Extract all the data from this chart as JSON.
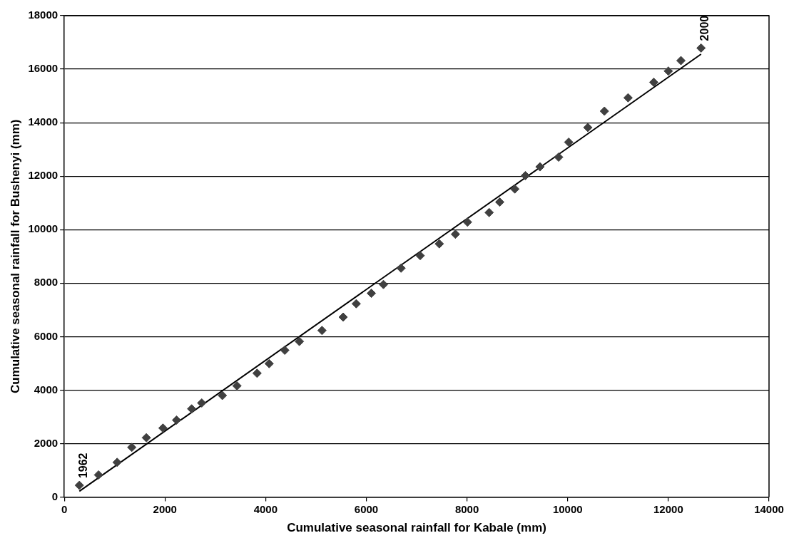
{
  "chart_data": {
    "type": "scatter",
    "xlabel": "Cumulative seasonal rainfall for Kabale (mm)",
    "ylabel": "Cumulative seasonal rainfall for Bushenyi (mm)",
    "xlim": [
      0,
      14000
    ],
    "xticks": [
      0,
      2000,
      4000,
      6000,
      8000,
      10000,
      12000,
      14000
    ],
    "ylim": [
      0,
      18000
    ],
    "yticks": [
      0,
      2000,
      4000,
      6000,
      8000,
      10000,
      12000,
      14000,
      16000,
      18000
    ],
    "grid": "y",
    "legend": false,
    "marker": "diamond",
    "annotations": [
      {
        "text": "1962",
        "x": 300,
        "y": 440
      },
      {
        "text": "2000",
        "x": 12650,
        "y": 16790
      }
    ],
    "series": [
      {
        "color": "#404040",
        "x": [
          300,
          680,
          1050,
          1340,
          1630,
          1960,
          2230,
          2530,
          2730,
          3140,
          3430,
          3830,
          4070,
          4380,
          4670,
          5120,
          5540,
          5800,
          6100,
          6340,
          6690,
          7070,
          7450,
          7770,
          8010,
          8440,
          8650,
          8950,
          9160,
          9450,
          9820,
          10020,
          10400,
          10730,
          11200,
          11710,
          12000,
          12250,
          12650
        ],
        "values": [
          440,
          830,
          1300,
          1860,
          2220,
          2580,
          2880,
          3300,
          3520,
          3800,
          4160,
          4630,
          4990,
          5490,
          5820,
          6230,
          6730,
          7230,
          7620,
          7950,
          8560,
          9030,
          9470,
          9830,
          10280,
          10640,
          11030,
          11520,
          12020,
          12350,
          12710,
          13270,
          13820,
          14430,
          14930,
          15510,
          15930,
          16320,
          16790
        ]
      },
      {
        "type": "line",
        "color": "#000000",
        "line_style": "solid",
        "marker": "none",
        "x": [
          300,
          12650
        ],
        "values": [
          220,
          16560
        ]
      }
    ]
  }
}
